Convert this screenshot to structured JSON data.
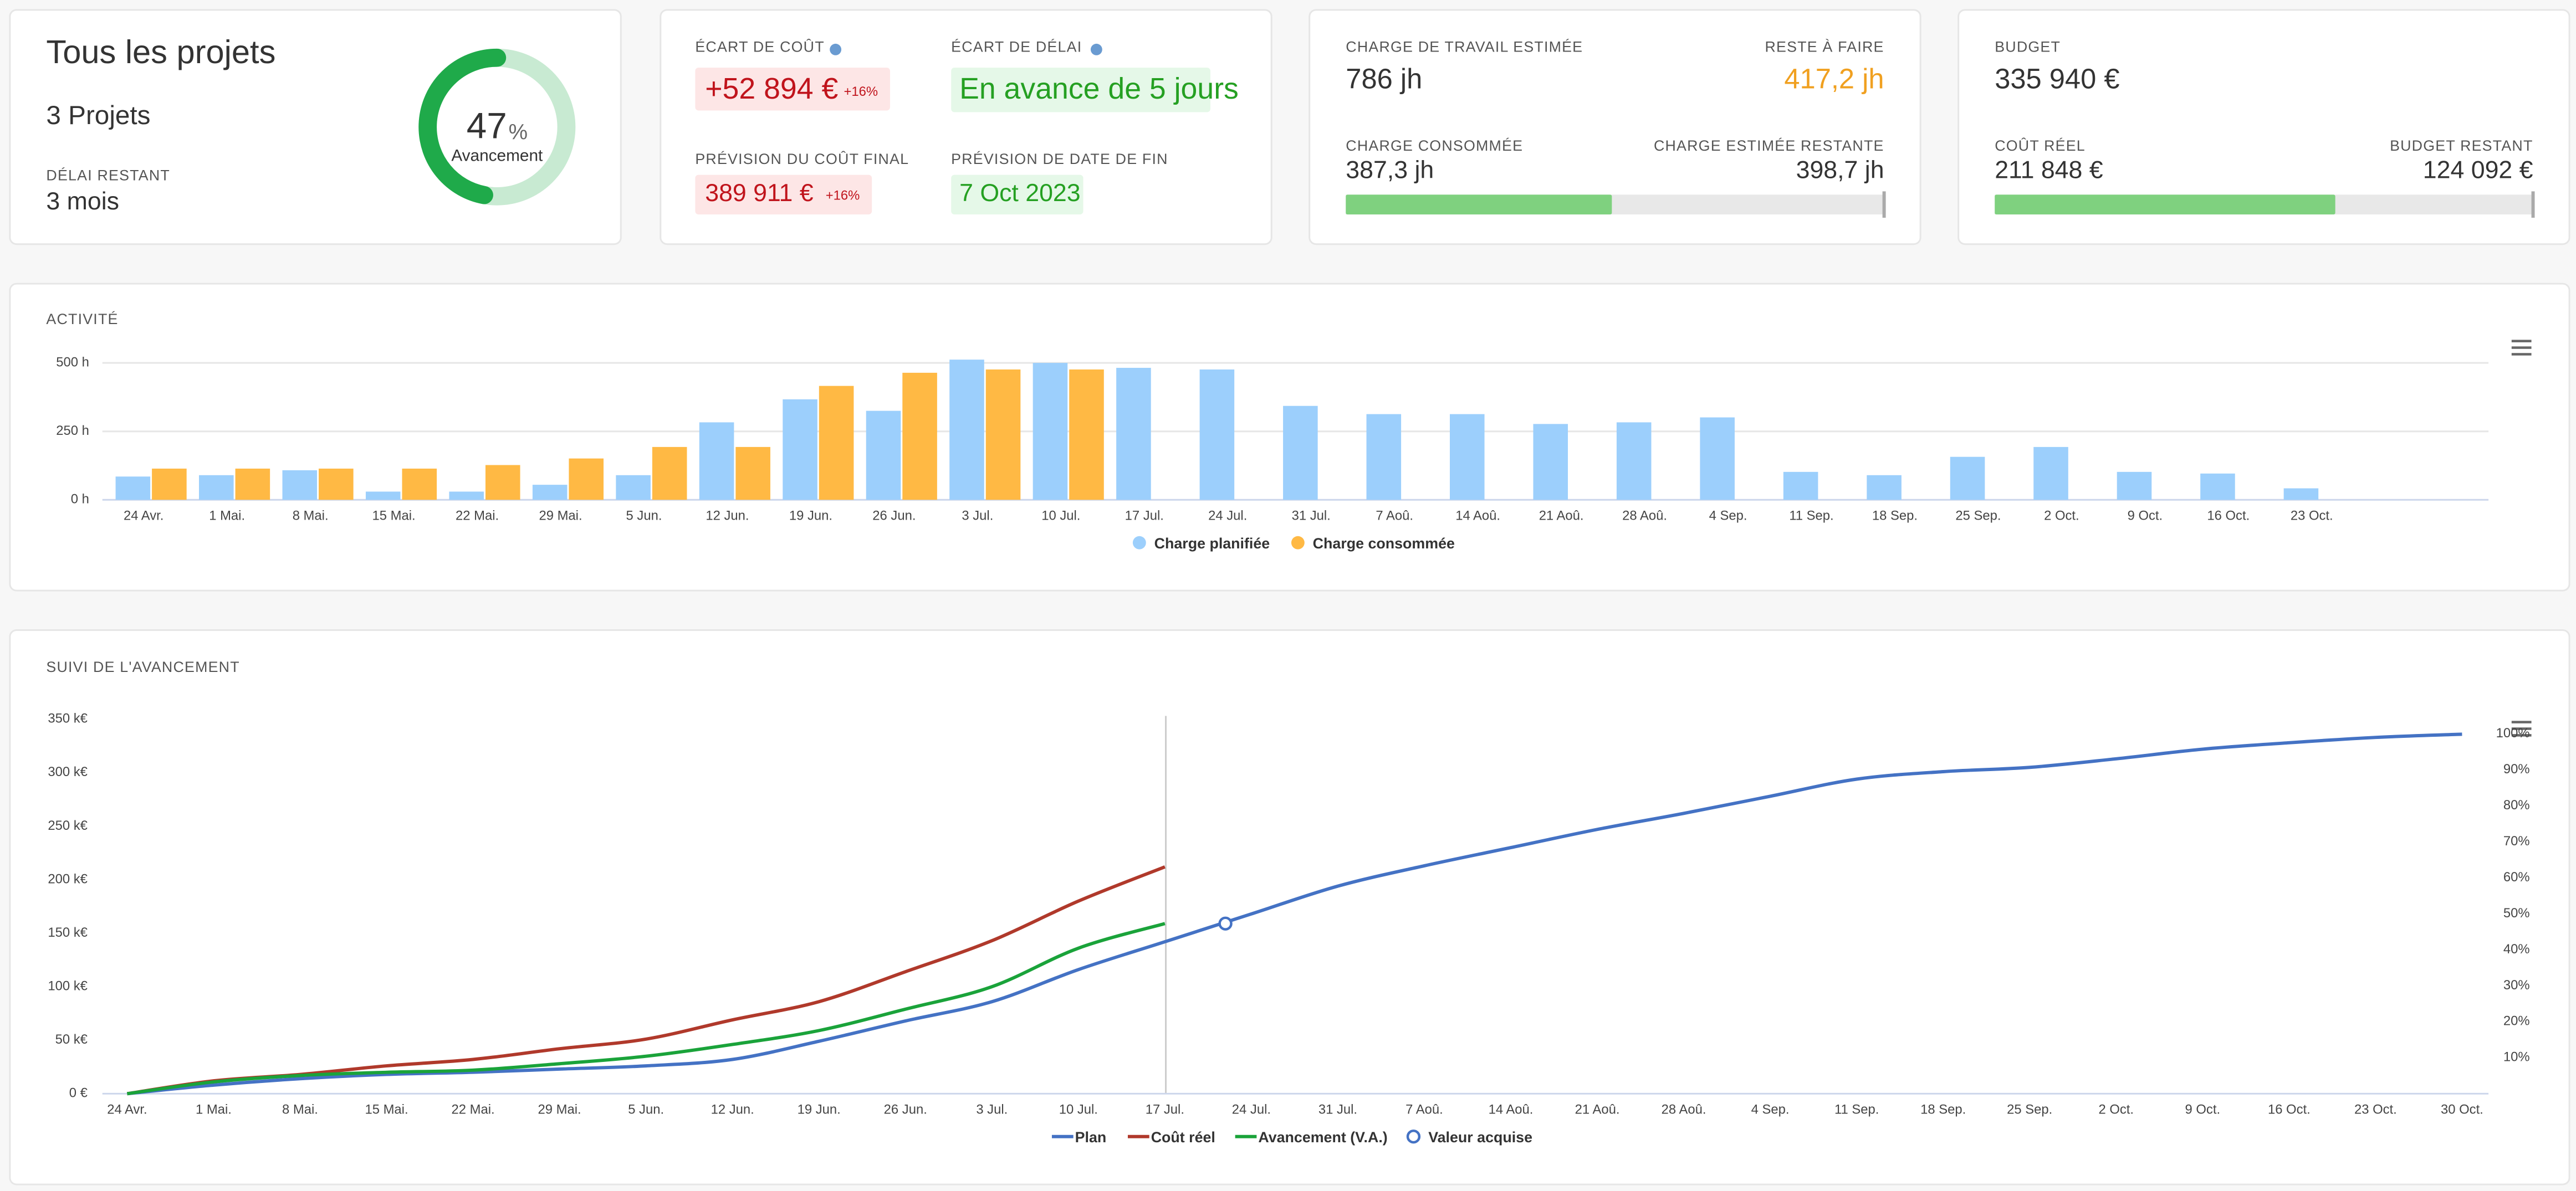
{
  "summary": {
    "title": "Tous les projets",
    "projects": "3 Projets",
    "remaining_label": "DÉLAI RESTANT",
    "remaining": "3 mois",
    "progress": {
      "value": 47,
      "unit": "%",
      "label": "Avancement"
    }
  },
  "variance": {
    "cost_label": "ÉCART DE COÛT",
    "cost": "+52 894 €",
    "cost_pct": "+16%",
    "delay_label": "ÉCART DE DÉLAI",
    "delay": "En avance de 5 jours",
    "forecast_cost_label": "PRÉVISION DU COÛT FINAL",
    "forecast_cost": "389 911 €",
    "forecast_cost_pct": "+16%",
    "forecast_end_label": "PRÉVISION DE DATE DE FIN",
    "forecast_end": "7 Oct 2023"
  },
  "workload": {
    "estimated_label": "CHARGE DE TRAVAIL ESTIMÉE",
    "estimated": {
      "value": 786,
      "label": "786 jh"
    },
    "todo_label": "RESTE À FAIRE",
    "todo": "417,2 jh",
    "consumed_label": "CHARGE CONSOMMÉE",
    "consumed": {
      "value": 387.3,
      "label": "387,3 jh"
    },
    "remaining_label": "CHARGE ESTIMÉE RESTANTE",
    "remaining": "398,7 jh"
  },
  "budget": {
    "budget_label": "BUDGET",
    "budget": {
      "value": 335940,
      "label": "335 940 €"
    },
    "actual_label": "COÛT RÉEL",
    "actual": {
      "value": 211848,
      "label": "211 848 €"
    },
    "remaining_label": "BUDGET RESTANT",
    "remaining": "124 092 €"
  },
  "chart_data": [
    {
      "type": "bar",
      "title": "ACTIVITÉ",
      "categories": [
        "24 Avr.",
        "1 Mai.",
        "8 Mai.",
        "15 Mai.",
        "22 Mai.",
        "29 Mai.",
        "5 Jun.",
        "12 Jun.",
        "19 Jun.",
        "26 Jun.",
        "3 Jul.",
        "10 Jul.",
        "17 Jul.",
        "24 Jul.",
        "31 Jul.",
        "7 Aoû.",
        "14 Aoû.",
        "21 Aoû.",
        "28 Aoû.",
        "4 Sep.",
        "11 Sep.",
        "18 Sep.",
        "25 Sep.",
        "2 Oct.",
        "9 Oct.",
        "16 Oct.",
        "23 Oct."
      ],
      "series": [
        {
          "name": "Charge planifiée",
          "color": "#9ccffc",
          "values": [
            85,
            90,
            108,
            30,
            30,
            55,
            90,
            283,
            367,
            325,
            512,
            500,
            482,
            476,
            343,
            313,
            313,
            277,
            283,
            301,
            102,
            90,
            157,
            193,
            102,
            96,
            42
          ]
        },
        {
          "name": "Charge consommée",
          "color": "#ffb944",
          "values": [
            114,
            114,
            114,
            114,
            127,
            151,
            193,
            193,
            416,
            464,
            476,
            476,
            null,
            null,
            null,
            null,
            null,
            null,
            null,
            null,
            null,
            null,
            null,
            null,
            null,
            null,
            null
          ]
        }
      ],
      "ylim": [
        0,
        500
      ],
      "yticks": [
        {
          "value": 0,
          "label": "0 h"
        },
        {
          "value": 250,
          "label": "250 h"
        },
        {
          "value": 500,
          "label": "500 h"
        }
      ],
      "grid": true
    },
    {
      "type": "line",
      "title": "SUIVI DE L'AVANCEMENT",
      "categories": [
        "24 Avr.",
        "1 Mai.",
        "8 Mai.",
        "15 Mai.",
        "22 Mai.",
        "29 Mai.",
        "5 Jun.",
        "12 Jun.",
        "19 Jun.",
        "26 Jun.",
        "3 Jul.",
        "10 Jul.",
        "17 Jul.",
        "24 Jul.",
        "31 Jul.",
        "7 Aoû.",
        "14 Aoû.",
        "21 Aoû.",
        "28 Aoû.",
        "4 Sep.",
        "11 Sep.",
        "18 Sep.",
        "25 Sep.",
        "2 Oct.",
        "9 Oct.",
        "16 Oct.",
        "23 Oct.",
        "30 Oct."
      ],
      "series": [
        {
          "name": "Plan",
          "color": "#4472c4",
          "values": [
            0,
            8,
            14,
            18,
            20,
            23,
            26,
            32,
            49,
            68,
            86,
            116,
            142,
            168,
            194,
            213,
            230,
            247,
            262,
            278,
            294,
            301,
            305,
            313,
            322,
            328,
            333,
            336
          ]
        },
        {
          "name": "Coût réel",
          "color": "#b0392b",
          "values": [
            0,
            12,
            18,
            26,
            32,
            42,
            51,
            69,
            86,
            114,
            143,
            180,
            212,
            null,
            null,
            null,
            null,
            null,
            null,
            null,
            null,
            null,
            null,
            null,
            null,
            null,
            null,
            null
          ]
        },
        {
          "name": "Avancement (V.A.)",
          "color": "#1aa33a",
          "values": [
            0,
            11,
            17,
            20,
            22,
            28,
            35,
            46,
            59,
            79,
            100,
            136,
            159,
            null,
            null,
            null,
            null,
            null,
            null,
            null,
            null,
            null,
            null,
            null,
            null,
            null,
            null,
            null
          ]
        }
      ],
      "marker": {
        "name": "Valeur acquise",
        "color": "#4472c4",
        "x": 12.7,
        "value": 159
      },
      "ylim": [
        0,
        350
      ],
      "yticks": [
        {
          "value": 0,
          "label": "0 €"
        },
        {
          "value": 50,
          "label": "50 k€"
        },
        {
          "value": 100,
          "label": "100 k€"
        },
        {
          "value": 150,
          "label": "150 k€"
        },
        {
          "value": 200,
          "label": "200 k€"
        },
        {
          "value": 250,
          "label": "250 k€"
        },
        {
          "value": 300,
          "label": "300 k€"
        },
        {
          "value": 350,
          "label": "350 k€"
        }
      ],
      "y2lim": [
        0,
        104.1
      ],
      "y2ticks": [
        {
          "value": 10,
          "label": "10%"
        },
        {
          "value": 20,
          "label": "20%"
        },
        {
          "value": 30,
          "label": "30%"
        },
        {
          "value": 40,
          "label": "40%"
        },
        {
          "value": 50,
          "label": "50%"
        },
        {
          "value": 60,
          "label": "60%"
        },
        {
          "value": 70,
          "label": "70%"
        },
        {
          "value": 80,
          "label": "80%"
        },
        {
          "value": 90,
          "label": "90%"
        },
        {
          "value": 100,
          "label": "100%"
        }
      ],
      "grid": true
    }
  ]
}
